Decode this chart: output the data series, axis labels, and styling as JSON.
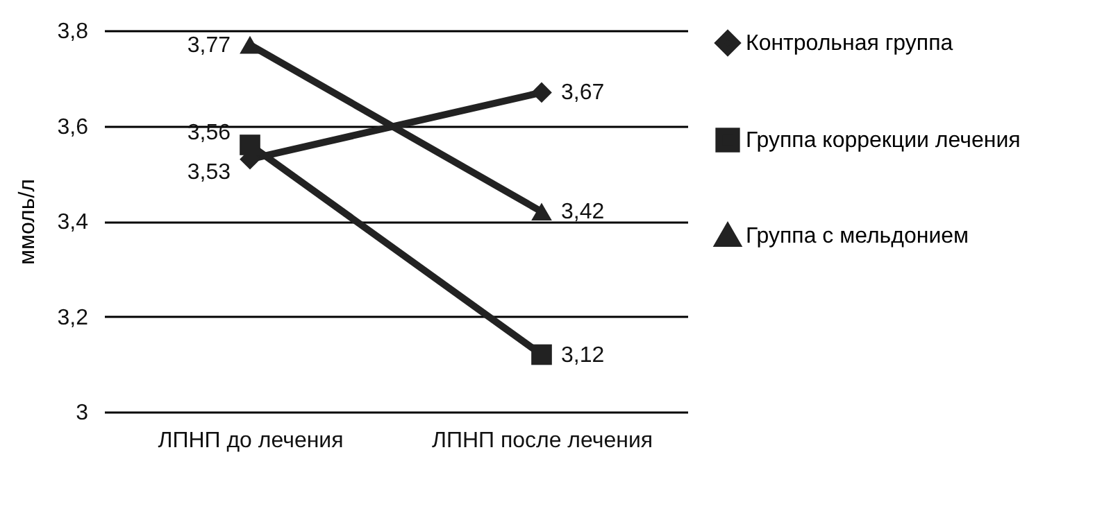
{
  "chart_data": {
    "type": "line",
    "ylabel": "ммоль/л",
    "categories": [
      "ЛПНП до лечения",
      "ЛПНП после лечения"
    ],
    "series": [
      {
        "name": "Контрольная группа",
        "color": "#222222",
        "marker": "diamond",
        "values": [
          3.53,
          3.67
        ],
        "value_labels": [
          "3,53",
          "3,67"
        ]
      },
      {
        "name": "Группа коррекции лечения",
        "color": "#222222",
        "marker": "square",
        "values": [
          3.56,
          3.12
        ],
        "value_labels": [
          "3,56",
          "3,12"
        ]
      },
      {
        "name": "Группа с мельдонием",
        "color": "#222222",
        "marker": "triangle",
        "values": [
          3.77,
          3.42
        ],
        "value_labels": [
          "3,77",
          "3,42"
        ]
      }
    ],
    "ylim": [
      3,
      3.8
    ],
    "yticks": [
      3,
      {
        "value": 3.2,
        "label": "3,2"
      },
      {
        "value": 3.4,
        "label": "3,4"
      },
      {
        "value": 3.6,
        "label": "3,6"
      },
      {
        "value": 3.8,
        "label": "3,8"
      }
    ],
    "grid": "y",
    "legend": "right",
    "line_style": "solid"
  }
}
